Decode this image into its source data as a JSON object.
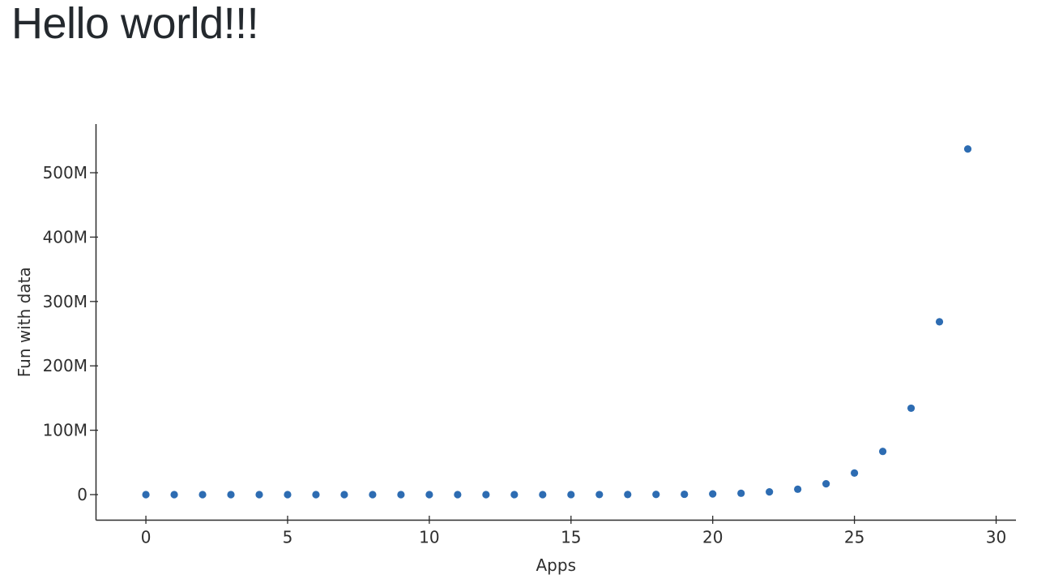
{
  "page": {
    "title": "Hello world!!!"
  },
  "chart_data": {
    "type": "scatter",
    "title": "",
    "xlabel": "Apps",
    "ylabel": "Fun with data",
    "x": [
      0,
      1,
      2,
      3,
      4,
      5,
      6,
      7,
      8,
      9,
      10,
      11,
      12,
      13,
      14,
      15,
      16,
      17,
      18,
      19,
      20,
      21,
      22,
      23,
      24,
      25,
      26,
      27,
      28,
      29
    ],
    "y": [
      1,
      2,
      4,
      8,
      16,
      32,
      64,
      128,
      256,
      512,
      1024,
      2048,
      4096,
      8192,
      16384,
      32768,
      65536,
      131072,
      262144,
      524288,
      1048576,
      2097152,
      4194304,
      8388608,
      16777216,
      33554432,
      67108864,
      134217728,
      268435456,
      536870912
    ],
    "xlim": [
      -1.76,
      30.7
    ],
    "ylim": [
      -39700000,
      575600000
    ],
    "x_ticks": [
      0,
      5,
      10,
      15,
      20,
      25,
      30
    ],
    "x_tick_labels": [
      "0",
      "5",
      "10",
      "15",
      "20",
      "25",
      "30"
    ],
    "y_ticks": [
      0,
      100000000,
      200000000,
      300000000,
      400000000,
      500000000
    ],
    "y_tick_labels": [
      "0",
      "100M",
      "200M",
      "300M",
      "400M",
      "500M"
    ],
    "grid": false,
    "legend": false,
    "marker_color": "#2d6cb2",
    "axis_line_color": "#2b2b2b",
    "tick_label_color": "#2e2e2e",
    "axis_label_color": "#2e2e2e",
    "background_color": "#ffffff"
  }
}
